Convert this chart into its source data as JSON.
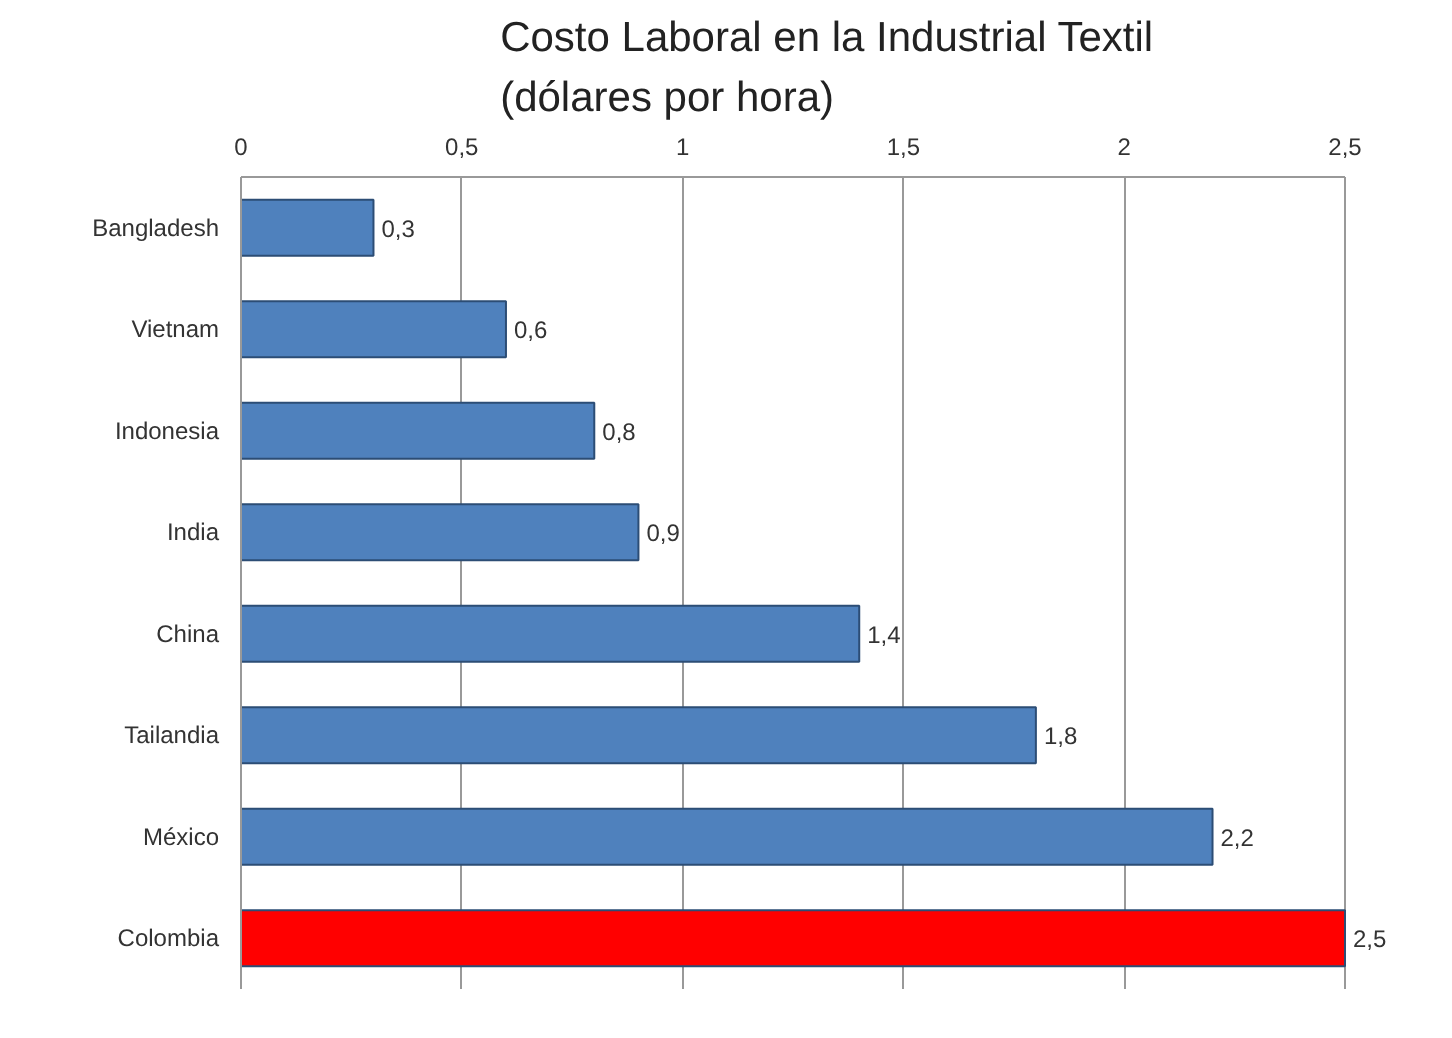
{
  "chart_data": {
    "type": "bar",
    "orientation": "horizontal",
    "title": "Costo Laboral en la Industrial Textil\n(dólares por hora)",
    "categories": [
      "Bangladesh",
      "Vietnam",
      "Indonesia",
      "India",
      "China",
      "Tailandia",
      "México",
      "Colombia"
    ],
    "values": [
      0.3,
      0.6,
      0.8,
      0.9,
      1.4,
      1.8,
      2.2,
      2.5
    ],
    "colors": [
      "#4f81bd",
      "#4f81bd",
      "#4f81bd",
      "#4f81bd",
      "#4f81bd",
      "#4f81bd",
      "#4f81bd",
      "#ff0000"
    ],
    "value_labels": [
      "0,3",
      "0,6",
      "0,8",
      "0,9",
      "1,4",
      "1,8",
      "2,2",
      "2,5"
    ],
    "xlim": [
      0,
      2.5
    ],
    "xticks": [
      0,
      {
        "value": 0.5,
        "label": "0,5"
      },
      1,
      {
        "value": 1.5,
        "label": "1,5"
      },
      2,
      {
        "value": 2.5,
        "label": "2,5"
      }
    ],
    "grid": "x"
  }
}
